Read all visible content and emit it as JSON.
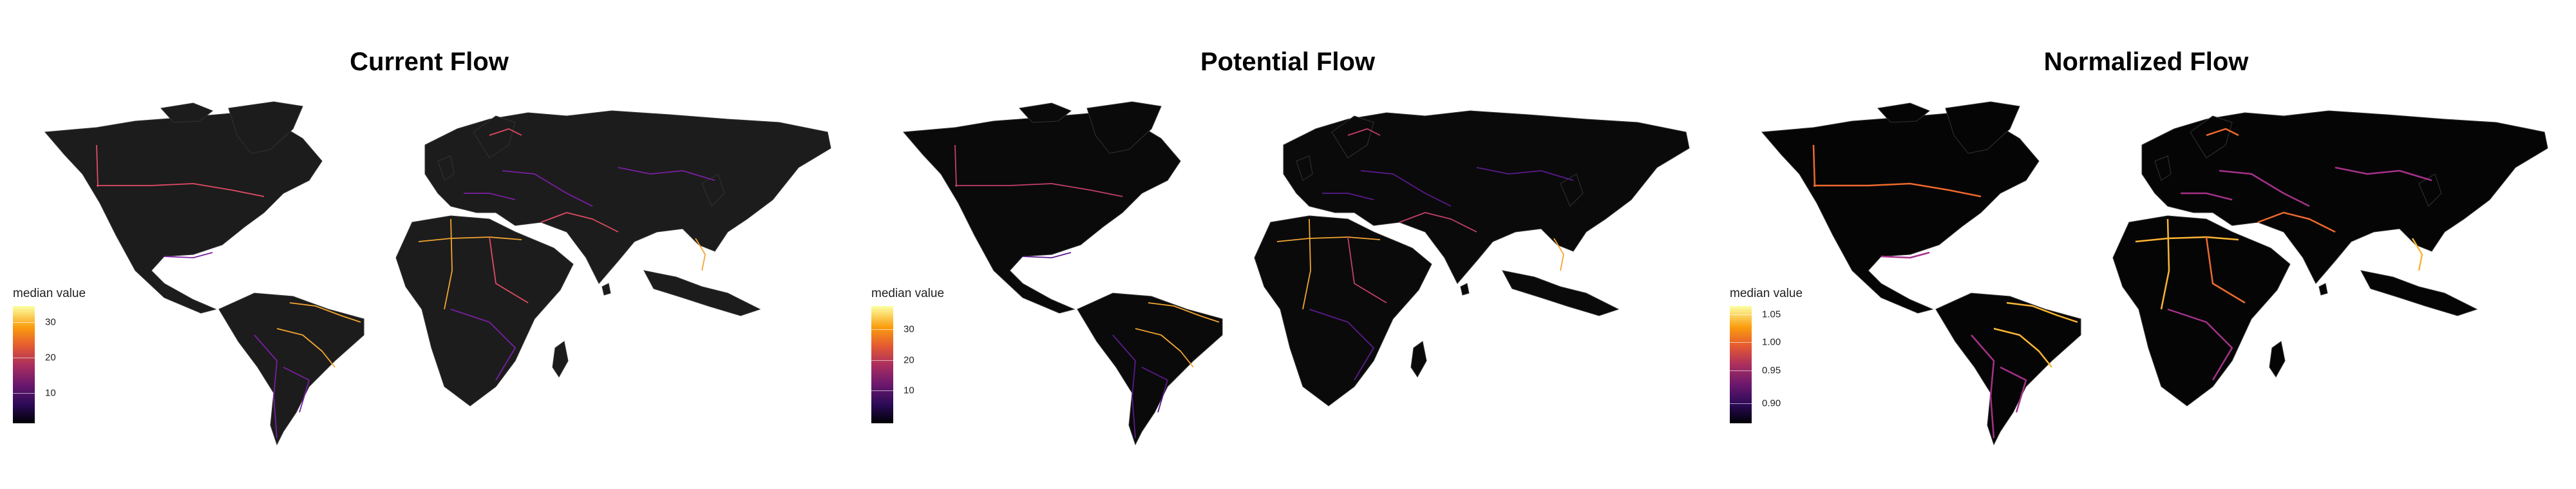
{
  "panels": [
    {
      "title": "Current Flow",
      "legend_title": "median value",
      "ticks": [
        "30",
        "20",
        "10"
      ],
      "tick_fracs": [
        0.14,
        0.44,
        0.74
      ],
      "colors": {
        "land": "#1c1c1c",
        "border_low": "#7a1fa2",
        "border_mid": "#e24c65",
        "border_high": "#f4a531"
      }
    },
    {
      "title": "Potential Flow",
      "legend_title": "median value",
      "ticks": [
        "30",
        "20",
        "10"
      ],
      "tick_fracs": [
        0.2,
        0.46,
        0.72
      ],
      "colors": {
        "land": "#0a0a0a",
        "border_low": "#5b1a8c",
        "border_mid": "#c33f6a",
        "border_high": "#f4a531"
      }
    },
    {
      "title": "Normalized Flow",
      "legend_title": "median value",
      "ticks": [
        "1.05",
        "1.00",
        "0.95",
        "0.90"
      ],
      "tick_fracs": [
        0.07,
        0.31,
        0.55,
        0.83
      ],
      "colors": {
        "land": "#050505",
        "border_low": "#a5318a",
        "border_mid": "#ee6a2e",
        "border_high": "#fbb534"
      }
    }
  ]
}
